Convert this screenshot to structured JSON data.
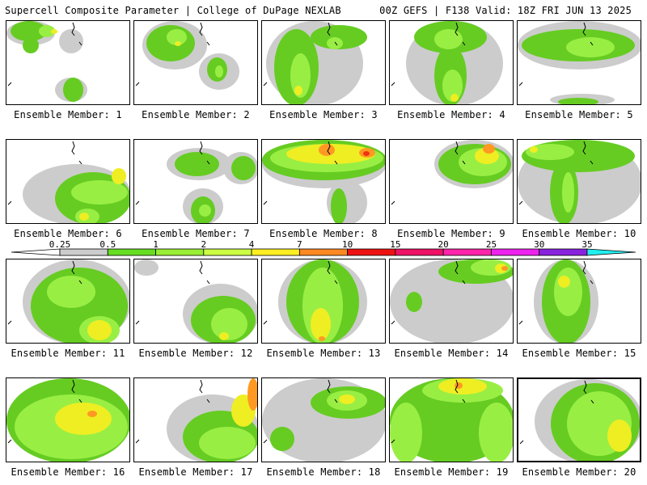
{
  "header": {
    "left_title": "Supercell Composite Parameter | College of DuPage NEXLAB",
    "right_title": "00Z GEFS | F138 Valid: 18Z FRI JUN 13 2025"
  },
  "panels": [
    {
      "label": "Ensemble Member: 1"
    },
    {
      "label": "Ensemble Member: 2"
    },
    {
      "label": "Ensemble Member: 3"
    },
    {
      "label": "Ensemble Member: 4"
    },
    {
      "label": "Ensemble Member: 5"
    },
    {
      "label": "Ensemble Member: 6"
    },
    {
      "label": "Ensemble Member: 7"
    },
    {
      "label": "Ensemble Member: 8"
    },
    {
      "label": "Ensemble Member: 9"
    },
    {
      "label": "Ensemble Member: 10"
    },
    {
      "label": "Ensemble Member: 11"
    },
    {
      "label": "Ensemble Member: 12"
    },
    {
      "label": "Ensemble Member: 13"
    },
    {
      "label": "Ensemble Member: 14"
    },
    {
      "label": "Ensemble Member: 15"
    },
    {
      "label": "Ensemble Member: 16"
    },
    {
      "label": "Ensemble Member: 17"
    },
    {
      "label": "Ensemble Member: 18"
    },
    {
      "label": "Ensemble Member: 19"
    },
    {
      "label": "Ensemble Member: 20",
      "selected": true
    }
  ],
  "colorbar": {
    "ticks": [
      "0.25",
      "0.5",
      "1",
      "2",
      "4",
      "7",
      "10",
      "15",
      "20",
      "25",
      "30",
      "35"
    ],
    "colors": [
      "#cccccc",
      "#cccccc",
      "#66dd22",
      "#99ee33",
      "#ccff44",
      "#ffee22",
      "#ff8822",
      "#ee1111",
      "#ee1166",
      "#ff22aa",
      "#ee22ee",
      "#8822dd",
      "#aa66dd",
      "#22eeee"
    ],
    "shade_colors": {
      "gray": "#cccccc",
      "green": "#66cc22",
      "light_green": "#99ee44",
      "yellow": "#eeee22",
      "orange": "#ff9922",
      "red": "#ee3311"
    }
  }
}
